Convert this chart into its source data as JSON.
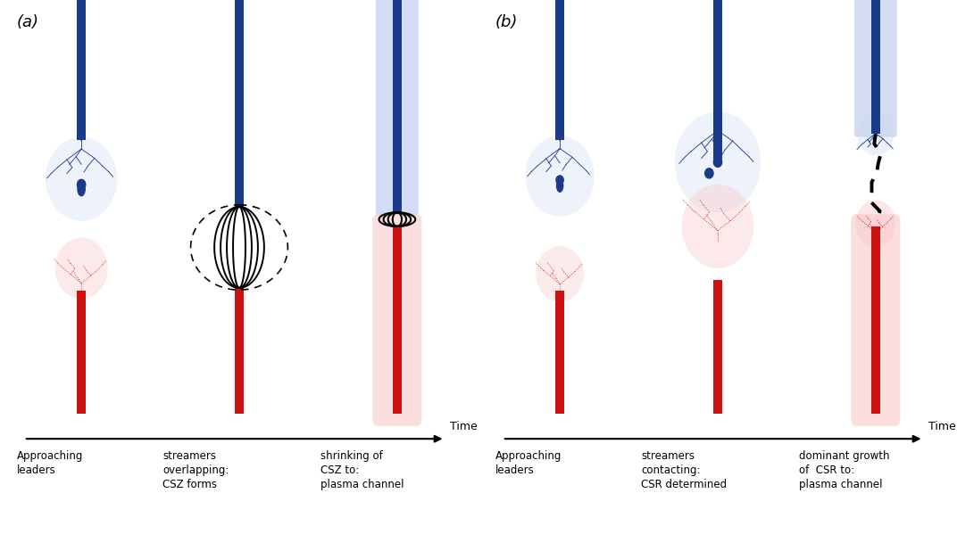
{
  "background_color": "#ffffff",
  "panel_a_label": "(a)",
  "panel_b_label": "(b)",
  "time_label": "Time",
  "panel_a_captions": [
    "Approaching\nleaders",
    "streamers\noverlapping:\nCSZ forms",
    "shrinking of\nCSZ to:\nplasma channel"
  ],
  "panel_b_captions": [
    "Approaching\nleaders",
    "streamers\ncontacting:\nCSR determined",
    "dominant growth\nof  CSR to:\nplasma channel"
  ],
  "blue_color": "#1a3a8a",
  "blue_light": "#b0c0e8",
  "red_color": "#cc1111",
  "red_light": "#f5a0a0",
  "pink_bg": "#f9c8c8",
  "blue_bg": "#c8d4f0",
  "black": "#111111"
}
